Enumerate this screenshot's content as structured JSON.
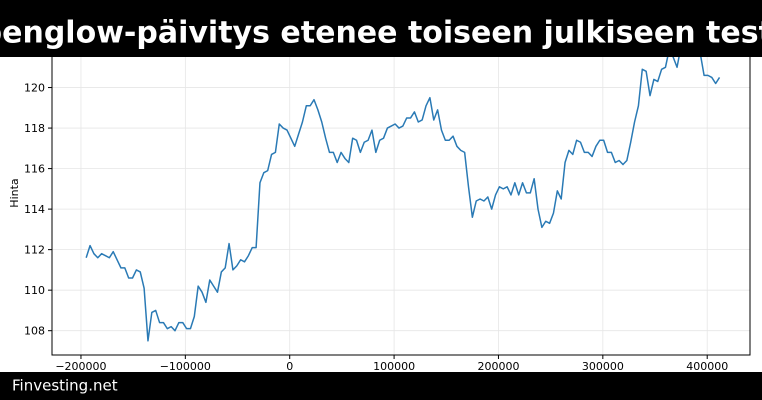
{
  "chart_data": {
    "type": "line",
    "title": "Alpenglow-päivitys etenee toiseen julkiseen testiin",
    "footer": "Finvesting.net",
    "y_label": "Hinta",
    "xlim": [
      -227750,
      441000
    ],
    "ylim": [
      106.8,
      122.1
    ],
    "xticks": [
      {
        "value": -200000,
        "label": "−200000"
      },
      {
        "value": -100000,
        "label": "−100000"
      },
      0,
      100000,
      200000,
      300000,
      400000
    ],
    "yticks": [
      108,
      110,
      112,
      114,
      116,
      118,
      120
    ],
    "grid": true,
    "series": [
      {
        "color": "#2a7ab5",
        "x": [
          -195000,
          -191300,
          -187600,
          -183900,
          -180200,
          -176500,
          -172800,
          -169100,
          -165400,
          -161700,
          -158000,
          -154300,
          -150600,
          -146900,
          -143200,
          -139500,
          -135800,
          -132100,
          -128400,
          -124700,
          -121000,
          -117300,
          -113600,
          -109900,
          -106200,
          -102500,
          -98800,
          -95100,
          -91400,
          -87700,
          -84000,
          -80300,
          -76600,
          -72900,
          -69200,
          -65500,
          -61800,
          -58100,
          -54400,
          -50700,
          -47000,
          -43300,
          -39600,
          -35900,
          -32200,
          -28500,
          -24800,
          -21100,
          -17400,
          -13700,
          -10000,
          -6300,
          -2600,
          1100,
          4800,
          8500,
          12200,
          15900,
          19600,
          23300,
          27000,
          30700,
          34400,
          38100,
          41800,
          45500,
          49200,
          52900,
          56600,
          60300,
          64000,
          67700,
          71400,
          75100,
          78800,
          82500,
          86200,
          89900,
          93600,
          97300,
          101000,
          104700,
          108400,
          112100,
          115800,
          119500,
          123200,
          126900,
          130600,
          134300,
          138000,
          141700,
          145400,
          149100,
          152800,
          156500,
          160200,
          163900,
          167600,
          171300,
          175000,
          178700,
          182400,
          186100,
          189800,
          193500,
          197200,
          200900,
          204600,
          208300,
          212000,
          215700,
          219400,
          223100,
          226800,
          230500,
          234200,
          237900,
          241600,
          245300,
          249000,
          252700,
          256400,
          260100,
          263800,
          267500,
          271200,
          274900,
          278600,
          282300,
          286000,
          289700,
          293400,
          297100,
          300800,
          304500,
          308200,
          311900,
          315600,
          319300,
          323000,
          326700,
          330400,
          334100,
          337800,
          341500,
          345200,
          348900,
          352600,
          356300,
          360000,
          363700,
          367400,
          371100,
          374800,
          378500,
          382200,
          385900,
          389600,
          393300,
          397000,
          400700,
          404400,
          408100,
          411800
        ],
        "values": [
          111.6,
          112.2,
          111.8,
          111.6,
          111.8,
          111.7,
          111.6,
          111.9,
          111.5,
          111.1,
          111.1,
          110.6,
          110.6,
          111.0,
          110.9,
          110.1,
          107.5,
          108.9,
          109.0,
          108.4,
          108.4,
          108.1,
          108.2,
          108.0,
          108.4,
          108.4,
          108.1,
          108.1,
          108.7,
          110.2,
          109.9,
          109.4,
          110.5,
          110.2,
          109.9,
          110.9,
          111.1,
          112.3,
          111.0,
          111.2,
          111.5,
          111.4,
          111.7,
          112.1,
          112.1,
          115.3,
          115.8,
          115.9,
          116.7,
          116.8,
          118.2,
          118.0,
          117.9,
          117.5,
          117.1,
          117.7,
          118.3,
          119.1,
          119.1,
          119.4,
          118.9,
          118.3,
          117.5,
          116.8,
          116.8,
          116.3,
          116.8,
          116.5,
          116.3,
          117.5,
          117.4,
          116.8,
          117.3,
          117.4,
          117.9,
          116.8,
          117.4,
          117.5,
          118.0,
          118.1,
          118.2,
          118.0,
          118.1,
          118.5,
          118.5,
          118.8,
          118.3,
          118.4,
          119.1,
          119.5,
          118.4,
          118.9,
          117.9,
          117.4,
          117.4,
          117.6,
          117.1,
          116.9,
          116.8,
          115.1,
          113.6,
          114.4,
          114.5,
          114.4,
          114.6,
          114.0,
          114.7,
          115.1,
          115.0,
          115.1,
          114.7,
          115.3,
          114.7,
          115.3,
          114.8,
          114.8,
          115.5,
          114.0,
          113.1,
          113.4,
          113.3,
          113.8,
          114.9,
          114.5,
          116.3,
          116.9,
          116.7,
          117.4,
          117.3,
          116.8,
          116.8,
          116.6,
          117.1,
          117.4,
          117.4,
          116.8,
          116.8,
          116.3,
          116.4,
          116.2,
          116.4,
          117.3,
          118.3,
          119.1,
          120.9,
          120.8,
          119.6,
          120.4,
          120.3,
          120.9,
          121.0,
          121.9,
          121.5,
          121.0,
          122.0,
          121.9,
          121.7,
          121.8,
          121.8,
          121.7,
          120.6,
          120.6,
          120.5,
          120.2,
          120.5
        ]
      }
    ]
  }
}
